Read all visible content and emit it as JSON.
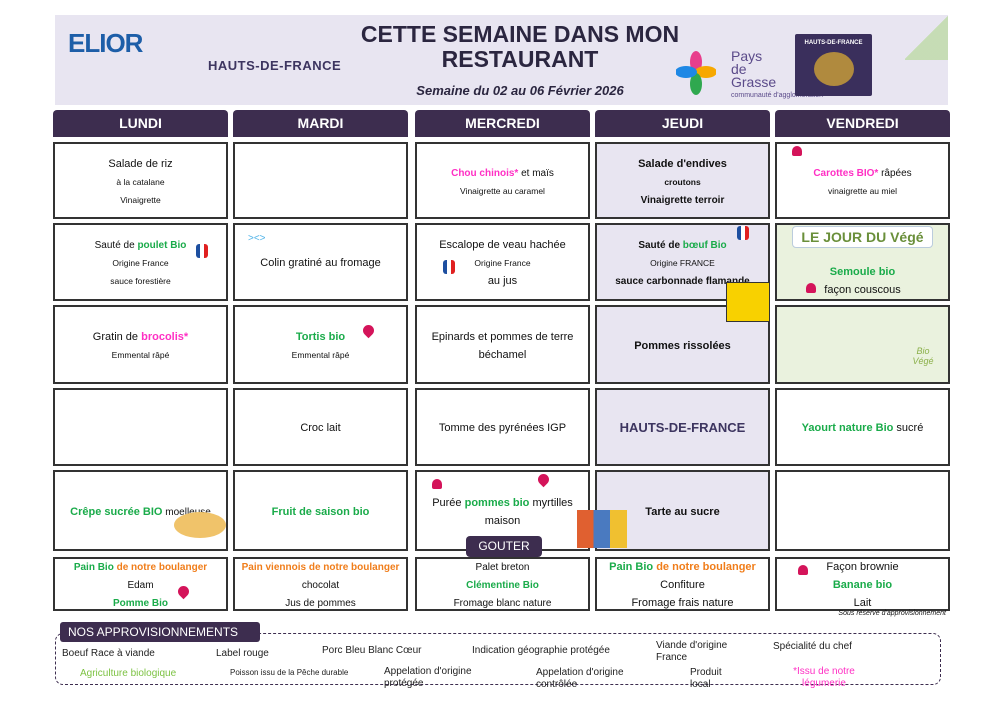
{
  "header": {
    "brand": "ELIOR",
    "region": "HAUTS-DE-FRANCE",
    "title": "CETTE SEMAINE DANS MON RESTAURANT",
    "week": "Semaine du 02 au 06 Février 2026",
    "partner_line1": "Pays",
    "partner_line2": "de",
    "partner_line3": "Grasse",
    "partner_sub": "communauté d'agglomération",
    "poster": "HAUTS-DE-FRANCE"
  },
  "days": [
    "LUNDI",
    "MARDI",
    "MERCREDI",
    "JEUDI",
    "VENDREDI"
  ],
  "colors": {
    "header": "#3d2d4f",
    "bio": "#1aab4a",
    "legumerie": "#ff2fc4",
    "boulanger": "#f07d1a",
    "banner": "#e8e5f1"
  },
  "menu": [
    [
      [
        [
          [
            "Salade de riz",
            "ln"
          ]
        ],
        [
          [
            "à la catalane",
            "s"
          ]
        ],
        [
          [
            "Vinaigrette",
            "s"
          ]
        ]
      ],
      [],
      [
        [
          [
            "Chou chinois*",
            "p m"
          ],
          [
            " et maïs",
            "m"
          ]
        ],
        [
          [
            "Vinaigrette au caramel",
            "s"
          ]
        ]
      ],
      [
        [
          [
            "Salade d'endives",
            "ln b"
          ]
        ],
        [
          [
            "croutons",
            "s b"
          ]
        ],
        [
          [
            "Vinaigrette terroir",
            "m b"
          ]
        ]
      ],
      [
        [
          [
            "Carottes BIO*",
            "p m"
          ],
          [
            " râpées",
            "m"
          ]
        ],
        [
          [
            "vinaigrette au miel",
            "s"
          ]
        ]
      ]
    ],
    [
      [
        [
          [
            "Sauté de ",
            "m"
          ],
          [
            "poulet Bio",
            "g m"
          ]
        ],
        [
          [
            "Origine France",
            "s"
          ]
        ],
        [
          [
            "sauce forestière",
            "s"
          ]
        ]
      ],
      [
        [
          [
            "Colin gratiné au fromage",
            "ln"
          ]
        ]
      ],
      [
        [
          [
            "Escalope de veau hachée",
            "ln"
          ]
        ],
        [
          [
            "Origine France",
            "s"
          ]
        ],
        [
          [
            "au jus",
            "ln"
          ]
        ]
      ],
      [
        [
          [
            "Sauté de ",
            "m b"
          ],
          [
            "bœuf Bio",
            "g m"
          ]
        ],
        [
          [
            "Origine FRANCE",
            "s"
          ]
        ],
        [
          [
            "sauce carbonnade flamande",
            "m b"
          ]
        ]
      ],
      [
        [
          [
            "Semoule bio",
            "g ln"
          ]
        ],
        [
          [
            "façon couscous",
            "ln"
          ]
        ]
      ]
    ],
    [
      [
        [
          [
            "Gratin de ",
            "ln"
          ],
          [
            "brocolis*",
            "p ln"
          ]
        ],
        [
          [
            "Emmental râpé",
            "s"
          ]
        ]
      ],
      [
        [
          [
            "Tortis bio",
            "g ln"
          ]
        ],
        [
          [
            "Emmental râpé",
            "s"
          ]
        ]
      ],
      [
        [
          [
            "Epinards et pommes de terre",
            "ln"
          ]
        ],
        [
          [
            "béchamel",
            "ln"
          ]
        ]
      ],
      [
        [
          [
            "Pommes rissolées",
            "ln b"
          ]
        ]
      ],
      []
    ],
    [
      [],
      [
        [
          [
            "Croc lait",
            "ln"
          ]
        ]
      ],
      [
        [
          [
            "Tomme des pyrénées IGP",
            "ln"
          ]
        ]
      ],
      [],
      [
        [
          [
            "Yaourt nature Bio",
            "g ln"
          ],
          [
            " sucré",
            "ln"
          ]
        ]
      ]
    ],
    [
      [
        [
          [
            "Crêpe sucrée BIO",
            "g ln"
          ],
          [
            " moelleuse",
            "m"
          ]
        ]
      ],
      [
        [
          [
            "Fruit de saison bio",
            "g ln"
          ]
        ]
      ],
      [
        [
          [
            "Purée ",
            "ln"
          ],
          [
            "pommes bio",
            "g ln"
          ],
          [
            " myrtilles",
            "ln"
          ]
        ],
        [
          [
            "maison",
            "ln"
          ]
        ]
      ],
      [
        [
          [
            "Tarte au sucre",
            "ln b"
          ]
        ]
      ],
      []
    ],
    [
      [
        [
          [
            "Pain Bio",
            "g m"
          ],
          [
            " de notre boulanger",
            "o m"
          ]
        ],
        [
          [
            "Edam",
            "m"
          ]
        ],
        [
          [
            "Pomme Bio",
            "g m"
          ]
        ]
      ],
      [
        [
          [
            "Pain viennois de notre boulanger",
            "o m"
          ]
        ],
        [
          [
            "chocolat",
            "m"
          ]
        ],
        [
          [
            "Jus de pommes",
            "m"
          ]
        ]
      ],
      [
        [
          [
            "Palet breton",
            "m"
          ]
        ],
        [
          [
            "Clémentine Bio",
            "g m"
          ]
        ],
        [
          [
            "Fromage blanc nature",
            "m"
          ]
        ]
      ],
      [
        [
          [
            "Pain Bio",
            "g ln"
          ],
          [
            " de notre boulanger",
            "o ln"
          ]
        ],
        [
          [
            "Confiture",
            "ln"
          ]
        ],
        [
          [
            "Fromage frais nature",
            "ln"
          ]
        ]
      ],
      [
        [
          [
            "Façon brownie",
            "ln"
          ]
        ],
        [
          [
            "Banane bio",
            "g ln"
          ]
        ],
        [
          [
            "Lait",
            "ln"
          ]
        ]
      ]
    ]
  ],
  "jeudi_region": "HAUTS-DE-FRANCE",
  "vendredi_badge": "LE JOUR DU Végé",
  "vege_mark": "Bio Végé",
  "gouter": "GOUTER",
  "reserve": "Sous réserve d'approvisionnement",
  "legend": {
    "title": "NOS APPROVISIONNEMENTS",
    "items": [
      "Boeuf Race à viande",
      "Label rouge",
      "Porc Bleu Blanc Cœur",
      "Indication géographie protégée",
      "Viande d'origine France",
      "Spécialité du chef",
      "Agriculture biologique",
      "Poisson issu de la Pêche durable",
      "Appelation d'origine protégée",
      "Appelation d'origine contrôlée",
      "Produit local",
      "*Issu de notre légumerie"
    ]
  }
}
